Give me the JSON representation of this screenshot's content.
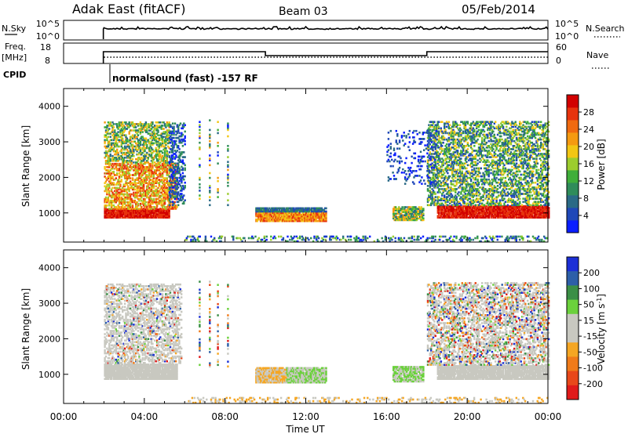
{
  "header": {
    "station": "Adak East (fitACF)",
    "beam": "Beam 03",
    "date": "05/Feb/2014"
  },
  "summary_panel": {
    "nsky_label": "N.Sky",
    "nsky_ticks": [
      "10^5",
      "10^0"
    ],
    "nsearch_label": "N.Search",
    "nsearch_ticks": [
      "10^5",
      "10^0"
    ],
    "freq_label": "Freq.",
    "freq_unit": "[MHz]",
    "freq_ticks": [
      18,
      8
    ],
    "nave_label": "Nave",
    "nave_ticks": [
      60,
      0
    ],
    "cpid_label": "CPID",
    "cpid_text": "normalsound (fast) -157 RF"
  },
  "chart_data": [
    {
      "type": "heatmap",
      "name": "power",
      "ylabel": "Slant Range [km]",
      "ylim": [
        180,
        4500
      ],
      "yticks": [
        1000,
        2000,
        3000,
        4000
      ],
      "xlim": [
        0,
        24
      ],
      "colorbar": {
        "label": "Power [dB]",
        "ticks": [
          "4",
          "8",
          "12",
          "16",
          "20",
          "24",
          "28"
        ],
        "colors": [
          "#0a1eff",
          "#1f48b8",
          "#2a6a86",
          "#2f8c5a",
          "#3fae3a",
          "#9ccc2e",
          "#f2c614",
          "#f59a11",
          "#f06a10",
          "#e7330d",
          "#d20000"
        ]
      }
    },
    {
      "type": "heatmap",
      "name": "velocity",
      "ylabel": "Slant Range [km]",
      "ylim": [
        180,
        4500
      ],
      "yticks": [
        1000,
        2000,
        3000,
        4000
      ],
      "xlim": [
        0,
        24
      ],
      "xlabel": "Time UT",
      "xticks": [
        "00:00",
        "04:00",
        "08:00",
        "12:00",
        "16:00",
        "20:00",
        "00:00"
      ],
      "colorbar": {
        "label": "Velocity [m s",
        "label_sup": "-1",
        "ticks": [
          "200",
          "100",
          "50",
          "15",
          "-15",
          "-50",
          "-100",
          "-200"
        ],
        "colors": [
          "#1c2fd6",
          "#2d5fa8",
          "#3b8f46",
          "#6bd13c",
          "#c8c8c0",
          "#c8c8c0",
          "#f5a623",
          "#f07b1a",
          "#e8481a",
          "#e01a1a"
        ]
      }
    }
  ]
}
